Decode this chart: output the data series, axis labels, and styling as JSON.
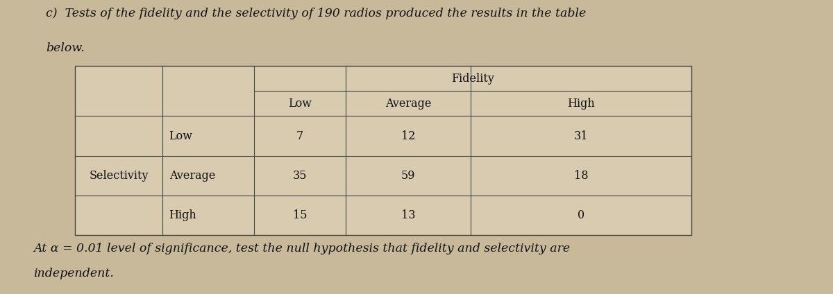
{
  "title_line1": "c)  Tests of the fidelity and the selectivity of 190 radios produced the results in the table",
  "title_line2": "below.",
  "fidelity_header": "Fidelity",
  "col_headers": [
    "Low",
    "Average",
    "High"
  ],
  "row_label_main": "Selectivity",
  "row_labels": [
    "Low",
    "Average",
    "High"
  ],
  "data": [
    [
      7,
      12,
      31
    ],
    [
      35,
      59,
      18
    ],
    [
      15,
      13,
      0
    ]
  ],
  "footnote_line1": "At α = 0.01 level of significance, test the null hypothesis that fidelity and selectivity are",
  "footnote_line2": "independent.",
  "bg_color": "#c8b99a",
  "table_bg": "#d8cbb0",
  "border_color": "#444444",
  "text_color": "#111111",
  "font_size_title": 12.5,
  "font_size_table": 11.5,
  "font_size_footnote": 12.5
}
